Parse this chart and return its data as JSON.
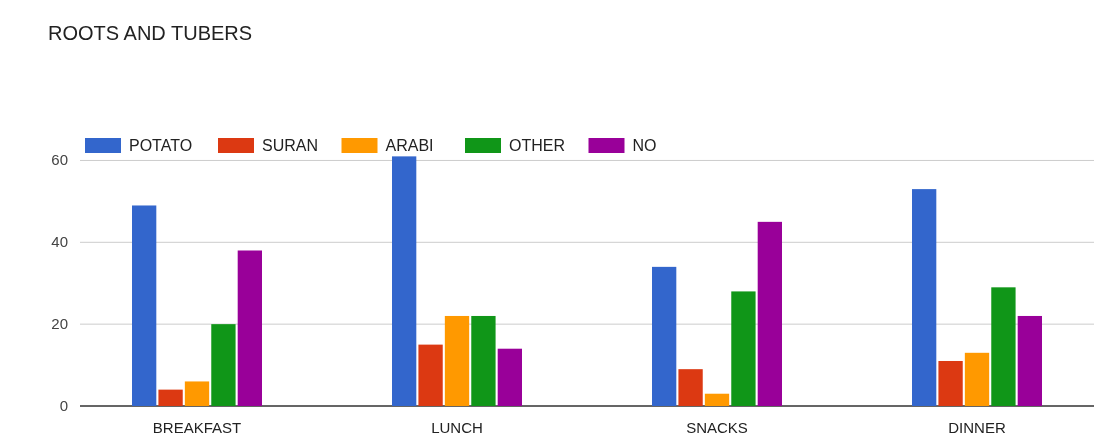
{
  "chart_data": {
    "type": "bar",
    "title": "ROOTS AND TUBERS",
    "categories": [
      "BREAKFAST",
      "LUNCH",
      "SNACKS",
      "DINNER"
    ],
    "series": [
      {
        "name": "POTATO",
        "color": "#3366cc",
        "values": [
          49,
          61,
          34,
          53
        ]
      },
      {
        "name": "SURAN",
        "color": "#dc3912",
        "values": [
          4,
          15,
          9,
          11
        ]
      },
      {
        "name": "ARABI",
        "color": "#ff9900",
        "values": [
          6,
          22,
          3,
          13
        ]
      },
      {
        "name": "OTHER",
        "color": "#109618",
        "values": [
          20,
          22,
          28,
          29
        ]
      },
      {
        "name": "NO",
        "color": "#990099",
        "values": [
          38,
          14,
          45,
          22
        ]
      }
    ],
    "ylim": [
      0,
      65
    ],
    "yticks": [
      0,
      20,
      40,
      60
    ],
    "grid": "y",
    "legend": "top"
  }
}
